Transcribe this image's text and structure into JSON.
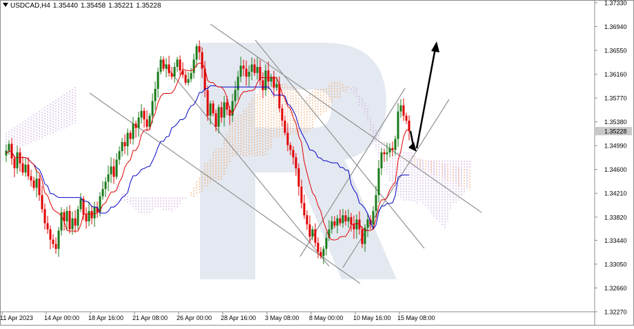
{
  "header": {
    "symbol": "USDCAD,H4",
    "open": "1.35440",
    "high": "1.35458",
    "low": "1.35221",
    "close": "1.35228"
  },
  "chart_data": {
    "type": "candlestick",
    "symbol": "USDCAD",
    "timeframe": "H4",
    "ylim": [
      1.3227,
      1.3733
    ],
    "y_ticks": [
      "1.37330",
      "1.36940",
      "1.36550",
      "1.36160",
      "1.35770",
      "1.35380",
      "1.34990",
      "1.34600",
      "1.34210",
      "1.33820",
      "1.33440",
      "1.33050",
      "1.32660",
      "1.32270"
    ],
    "x_ticks": [
      {
        "label": "11 Apr 2023",
        "bar": 0
      },
      {
        "label": "14 Apr 00:00",
        "bar": 16
      },
      {
        "label": "18 Apr 16:00",
        "bar": 32
      },
      {
        "label": "21 Apr 08:00",
        "bar": 48
      },
      {
        "label": "26 Apr 00:00",
        "bar": 64
      },
      {
        "label": "28 Apr 16:00",
        "bar": 80
      },
      {
        "label": "3 May 08:00",
        "bar": 96
      },
      {
        "label": "8 May 00:00",
        "bar": 112
      },
      {
        "label": "10 May 16:00",
        "bar": 128
      },
      {
        "label": "15 May 08:00",
        "bar": 144
      }
    ],
    "current_price": "1.35228",
    "current_price_value": 1.35228,
    "candles_close": [
      1.3491,
      1.3502,
      1.3478,
      1.3462,
      1.3488,
      1.347,
      1.3455,
      1.3468,
      1.3449,
      1.3442,
      1.343,
      1.3445,
      1.3418,
      1.3395,
      1.3372,
      1.3362,
      1.3345,
      1.3338,
      1.333,
      1.336,
      1.339,
      1.3375,
      1.3392,
      1.3362,
      1.338,
      1.3368,
      1.3395,
      1.3412,
      1.3386,
      1.3375,
      1.3392,
      1.338,
      1.3398,
      1.339,
      1.3416,
      1.3428,
      1.344,
      1.3452,
      1.3465,
      1.3448,
      1.3476,
      1.349,
      1.3505,
      1.3498,
      1.352,
      1.351,
      1.3535,
      1.3528,
      1.3545,
      1.3556,
      1.3542,
      1.353,
      1.3548,
      1.3572,
      1.3592,
      1.362,
      1.364,
      1.3625,
      1.3632,
      1.3618,
      1.3612,
      1.3628,
      1.364,
      1.3622,
      1.3615,
      1.3602,
      1.3608,
      1.3618,
      1.364,
      1.3662,
      1.3652,
      1.3625,
      1.359,
      1.3548,
      1.3568,
      1.3552,
      1.353,
      1.3562,
      1.3545,
      1.357,
      1.3558,
      1.3548,
      1.3572,
      1.359,
      1.3612,
      1.363,
      1.3625,
      1.3612,
      1.362,
      1.3632,
      1.3618,
      1.3628,
      1.3606,
      1.359,
      1.3622,
      1.3604,
      1.3612,
      1.3594,
      1.36,
      1.356,
      1.354,
      1.352,
      1.35,
      1.3492,
      1.348,
      1.3462,
      1.3432,
      1.3405,
      1.3385,
      1.337,
      1.335,
      1.3362,
      1.334,
      1.3325,
      1.3318,
      1.333,
      1.3348,
      1.3362,
      1.3375,
      1.3368,
      1.338,
      1.3372,
      1.3385,
      1.3375,
      1.3382,
      1.337,
      1.3362,
      1.3378,
      1.3362,
      1.3338,
      1.3365,
      1.3378,
      1.337,
      1.3392,
      1.3418,
      1.3462,
      1.3488,
      1.3485,
      1.3488,
      1.3495,
      1.3492,
      1.351,
      1.3555,
      1.3565,
      1.3548,
      1.354,
      1.3523
    ]
  },
  "lines": {
    "tenkan_color": "#e00000",
    "kijun_color": "#0000c8",
    "bull_candle": "#1a7a1a",
    "bear_candle": "#e00000",
    "cloud_bull": "#f0a060",
    "cloud_bear": "#c8a0d8",
    "trend_lines": "#909090",
    "forecast_arrow": "#000000"
  }
}
